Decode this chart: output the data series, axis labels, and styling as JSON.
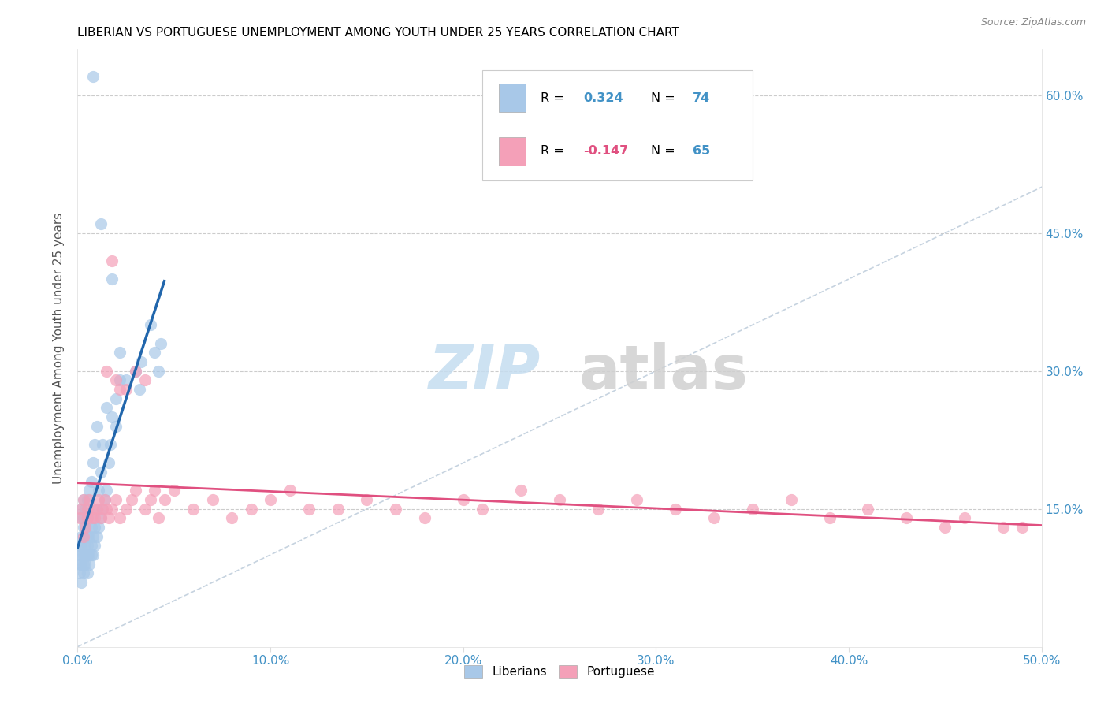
{
  "title": "LIBERIAN VS PORTUGUESE UNEMPLOYMENT AMONG YOUTH UNDER 25 YEARS CORRELATION CHART",
  "source": "Source: ZipAtlas.com",
  "xlim": [
    0,
    0.5
  ],
  "ylim": [
    0,
    0.65
  ],
  "liberian_color": "#a8c8e8",
  "trend_liberian_color": "#2166ac",
  "portuguese_color": "#f4a0b8",
  "trend_portuguese_color": "#e05080",
  "diagonal_color": "#b8c8d8",
  "R_liberian": "0.324",
  "N_liberian": "74",
  "R_portuguese": "-0.147",
  "N_portuguese": "65",
  "legend_R_color": "#4292c6",
  "legend_N_color": "#4292c6",
  "legend_Rneg_color": "#e05080",
  "right_axis_color": "#4292c6",
  "x_axis_label_color": "#4292c6",
  "liberian_x": [
    0.001,
    0.001,
    0.001,
    0.001,
    0.002,
    0.002,
    0.002,
    0.002,
    0.002,
    0.002,
    0.002,
    0.003,
    0.003,
    0.003,
    0.003,
    0.003,
    0.003,
    0.003,
    0.004,
    0.004,
    0.004,
    0.004,
    0.004,
    0.005,
    0.005,
    0.005,
    0.005,
    0.005,
    0.005,
    0.006,
    0.006,
    0.006,
    0.006,
    0.007,
    0.007,
    0.007,
    0.007,
    0.008,
    0.008,
    0.008,
    0.008,
    0.009,
    0.009,
    0.009,
    0.01,
    0.01,
    0.01,
    0.011,
    0.011,
    0.012,
    0.012,
    0.013,
    0.013,
    0.014,
    0.015,
    0.015,
    0.016,
    0.017,
    0.018,
    0.02,
    0.02,
    0.022,
    0.025,
    0.03,
    0.032,
    0.033,
    0.038,
    0.04,
    0.042,
    0.043,
    0.008,
    0.012,
    0.018,
    0.022
  ],
  "liberian_y": [
    0.09,
    0.1,
    0.11,
    0.08,
    0.07,
    0.09,
    0.1,
    0.12,
    0.11,
    0.14,
    0.15,
    0.08,
    0.09,
    0.1,
    0.12,
    0.13,
    0.14,
    0.16,
    0.09,
    0.1,
    0.11,
    0.13,
    0.15,
    0.08,
    0.1,
    0.11,
    0.12,
    0.14,
    0.16,
    0.09,
    0.1,
    0.12,
    0.17,
    0.1,
    0.11,
    0.13,
    0.18,
    0.1,
    0.12,
    0.14,
    0.2,
    0.11,
    0.13,
    0.22,
    0.12,
    0.15,
    0.24,
    0.13,
    0.17,
    0.14,
    0.19,
    0.15,
    0.22,
    0.16,
    0.17,
    0.26,
    0.2,
    0.22,
    0.25,
    0.24,
    0.27,
    0.29,
    0.29,
    0.3,
    0.28,
    0.31,
    0.35,
    0.32,
    0.3,
    0.33,
    0.62,
    0.46,
    0.4,
    0.32
  ],
  "portuguese_x": [
    0.001,
    0.002,
    0.003,
    0.003,
    0.004,
    0.005,
    0.005,
    0.006,
    0.007,
    0.008,
    0.009,
    0.01,
    0.011,
    0.012,
    0.013,
    0.014,
    0.015,
    0.016,
    0.018,
    0.02,
    0.022,
    0.025,
    0.028,
    0.03,
    0.035,
    0.038,
    0.042,
    0.045,
    0.05,
    0.06,
    0.07,
    0.08,
    0.09,
    0.1,
    0.11,
    0.12,
    0.135,
    0.15,
    0.165,
    0.18,
    0.2,
    0.21,
    0.23,
    0.25,
    0.27,
    0.29,
    0.31,
    0.33,
    0.35,
    0.37,
    0.39,
    0.41,
    0.43,
    0.45,
    0.46,
    0.48,
    0.49,
    0.02,
    0.025,
    0.03,
    0.035,
    0.04,
    0.018,
    0.022,
    0.015
  ],
  "portuguese_y": [
    0.14,
    0.15,
    0.16,
    0.12,
    0.13,
    0.15,
    0.14,
    0.16,
    0.14,
    0.15,
    0.14,
    0.15,
    0.16,
    0.14,
    0.15,
    0.16,
    0.15,
    0.14,
    0.15,
    0.16,
    0.14,
    0.15,
    0.16,
    0.17,
    0.15,
    0.16,
    0.14,
    0.16,
    0.17,
    0.15,
    0.16,
    0.14,
    0.15,
    0.16,
    0.17,
    0.15,
    0.15,
    0.16,
    0.15,
    0.14,
    0.16,
    0.15,
    0.17,
    0.16,
    0.15,
    0.16,
    0.15,
    0.14,
    0.15,
    0.16,
    0.14,
    0.15,
    0.14,
    0.13,
    0.14,
    0.13,
    0.13,
    0.29,
    0.28,
    0.3,
    0.29,
    0.17,
    0.42,
    0.28,
    0.3
  ]
}
